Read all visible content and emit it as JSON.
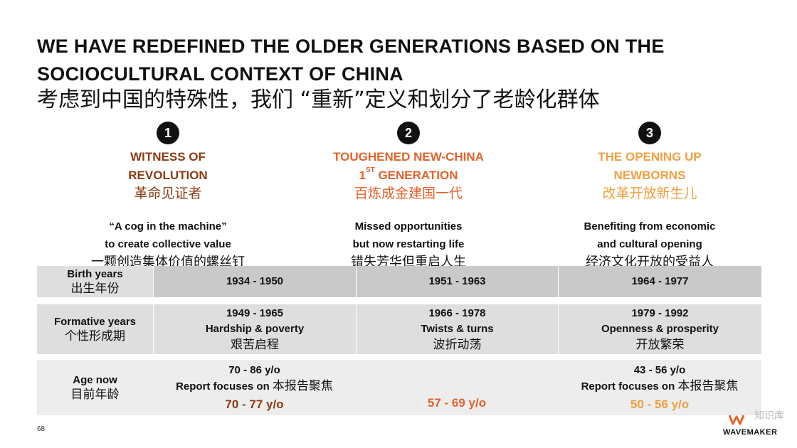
{
  "header": {
    "title_en": "WE HAVE REDEFINED THE OLDER GENERATIONS BASED ON THE SOCIOCULTURAL CONTEXT OF CHINA",
    "title_zh": "考虑到中国的特殊性，我们 “重新”定义和划分了老龄化群体"
  },
  "generations": [
    {
      "number": "1",
      "title_line1": "WITNESS OF",
      "title_line2": "REVOLUTION",
      "title_zh": "革命见证者",
      "desc_line1": "“A cog in the machine”",
      "desc_line2": "to create collective value",
      "desc_zh": "一颗创造集体价值的螺丝钉",
      "color": "#8a3b12"
    },
    {
      "number": "2",
      "title_line1": "TOUGHENED NEW-CHINA",
      "title_line2_pre": "1",
      "title_line2_sup": "ST",
      "title_line2_post": " GENERATION",
      "title_zh": "百炼成金建国一代",
      "desc_line1": "Missed opportunities",
      "desc_line2": "but now restarting life",
      "desc_zh": "错失芳华但重启人生",
      "color": "#e2632b"
    },
    {
      "number": "3",
      "title_line1": "THE OPENING UP",
      "title_line2": "NEWBORNS",
      "title_zh": "改革开放新生儿",
      "desc_line1": "Benefiting from economic",
      "desc_line2": "and cultural opening",
      "desc_zh": "经济文化开放的受益人",
      "color": "#f0a040"
    }
  ],
  "table": {
    "birth": {
      "label_en": "Birth years",
      "label_zh": "出生年份",
      "values": [
        "1934 - 1950",
        "1951 - 1963",
        "1964 - 1977"
      ]
    },
    "formative": {
      "label_en": "Formative years",
      "label_zh": "个性形成期",
      "cells": [
        {
          "years": "1949 - 1965",
          "en": "Hardship & poverty",
          "zh": "艰苦启程"
        },
        {
          "years": "1966 - 1978",
          "en": "Twists & turns",
          "zh": "波折动荡"
        },
        {
          "years": "1979 - 1992",
          "en": "Openness & prosperity",
          "zh": "开放繁荣"
        }
      ]
    },
    "age": {
      "label_en": "Age now",
      "label_zh": "目前年龄",
      "cells": [
        {
          "range": "70 - 86 y/o",
          "focus_en": "Report focuses on ",
          "focus_zh": "本报告聚焦",
          "focus_range": "70 - 77 y/o"
        },
        {
          "range": "",
          "focus_en": "",
          "focus_zh": "",
          "focus_range": "57 - 69 y/o"
        },
        {
          "range": "43 - 56 y/o",
          "focus_en": "Report focuses on ",
          "focus_zh": "本报告聚焦",
          "focus_range": "50 - 56 y/o"
        }
      ]
    }
  },
  "footer": {
    "page_number": "68",
    "logo_text": "WAVEMAKER",
    "watermark": "知识库"
  }
}
